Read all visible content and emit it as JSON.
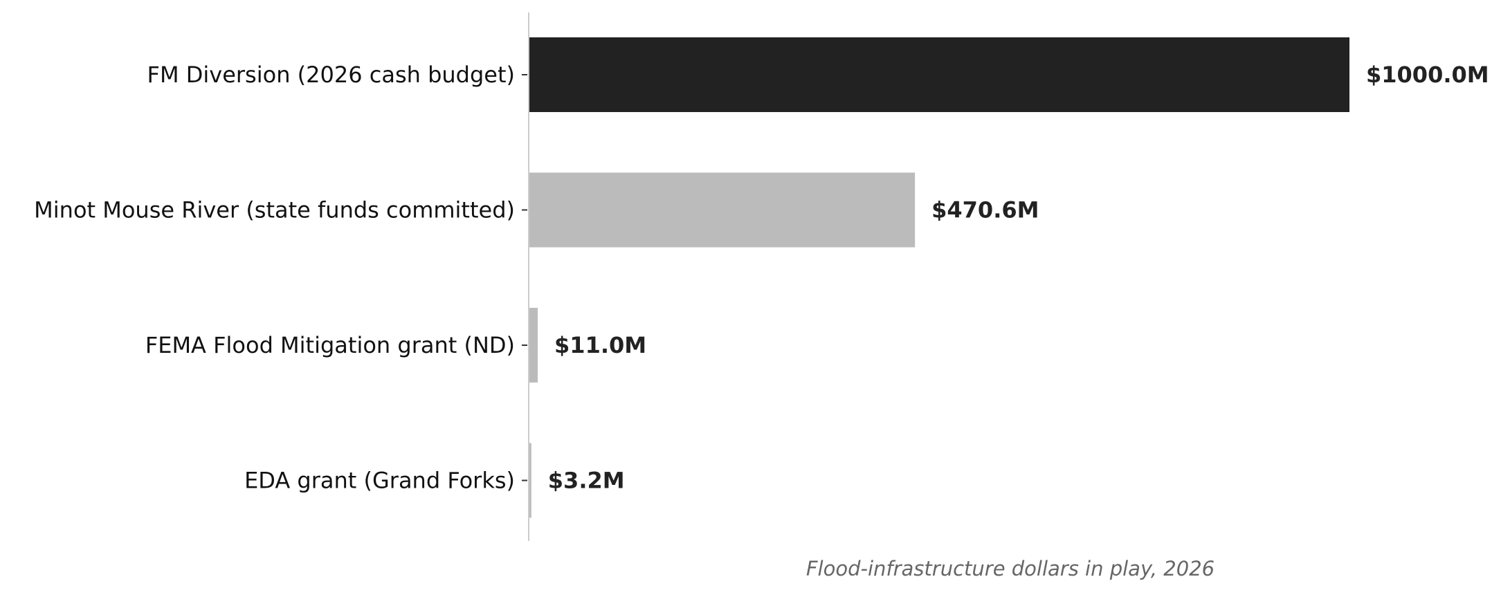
{
  "chart_data": {
    "type": "bar",
    "orientation": "horizontal",
    "categories": [
      "FM Diversion (2026 cash budget)",
      "Minot Mouse River (state funds committed)",
      "FEMA Flood Mitigation grant (ND)",
      "EDA grant (Grand Forks)"
    ],
    "values": [
      1000.0,
      470.6,
      11.0,
      3.2
    ],
    "value_labels": [
      "$1000.0M",
      "$470.6M",
      "$11.0M",
      "$3.2M"
    ],
    "xlabel": "Flood-infrastructure dollars in play, 2026",
    "ylabel": "",
    "title": "",
    "xlim": [
      0,
      1000
    ],
    "grid": false,
    "legend": "none",
    "colors": {
      "highlight": "#222222",
      "other": "#bbbbbb",
      "axis_line": "#cccccc",
      "tick": "#333333"
    },
    "highlight_index": 0
  }
}
